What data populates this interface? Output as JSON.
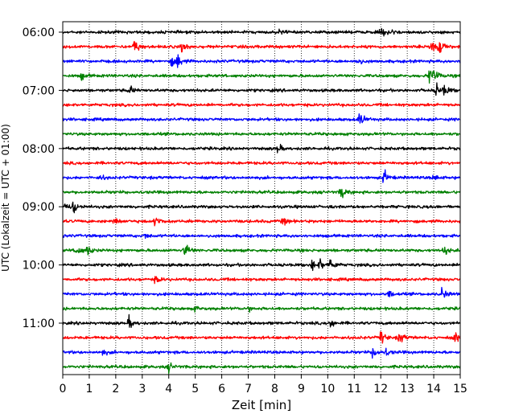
{
  "chart_data": {
    "type": "line",
    "subtype": "helicorder",
    "xlabel": "Zeit  [min]",
    "ylabel": "UTC (Lokalzeit = UTC + 01:00)",
    "xlim": [
      0,
      15
    ],
    "x_ticks": [
      "0",
      "1",
      "2",
      "3",
      "4",
      "5",
      "6",
      "7",
      "8",
      "9",
      "10",
      "11",
      "12",
      "13",
      "14",
      "15"
    ],
    "y_ticks": [
      "06:00",
      "07:00",
      "08:00",
      "09:00",
      "10:00",
      "11:00"
    ],
    "grid": "vertical dotted",
    "trace_interval_min": 15,
    "trace_colors": [
      "#000000",
      "#ff0000",
      "#0000ff",
      "#008000"
    ],
    "traces": [
      {
        "start": "06:00",
        "color": "#000000",
        "events": [
          [
            8.2,
            0.35
          ],
          [
            12.0,
            0.5
          ],
          [
            12.3,
            0.6
          ]
        ]
      },
      {
        "start": "06:15",
        "color": "#ff0000",
        "events": [
          [
            2.7,
            1.0
          ],
          [
            4.5,
            0.8
          ],
          [
            13.9,
            1.0
          ],
          [
            14.2,
            0.9
          ]
        ]
      },
      {
        "start": "06:30",
        "color": "#0000ff",
        "events": [
          [
            4.3,
            1.0
          ],
          [
            4.1,
            0.5
          ],
          [
            11.1,
            0.5
          ]
        ]
      },
      {
        "start": "06:45",
        "color": "#008000",
        "events": [
          [
            0.7,
            0.4
          ],
          [
            13.8,
            1.0
          ],
          [
            14.0,
            0.7
          ]
        ]
      },
      {
        "start": "07:00",
        "color": "#000000",
        "events": [
          [
            2.5,
            0.6
          ],
          [
            14.1,
            0.8
          ],
          [
            14.4,
            0.6
          ]
        ]
      },
      {
        "start": "07:15",
        "color": "#ff0000",
        "events": []
      },
      {
        "start": "07:30",
        "color": "#0000ff",
        "events": [
          [
            11.2,
            0.9
          ]
        ]
      },
      {
        "start": "07:45",
        "color": "#008000",
        "events": []
      },
      {
        "start": "08:00",
        "color": "#000000",
        "events": [
          [
            8.1,
            0.5
          ]
        ]
      },
      {
        "start": "08:15",
        "color": "#ff0000",
        "events": []
      },
      {
        "start": "08:30",
        "color": "#0000ff",
        "events": [
          [
            12.1,
            0.9
          ],
          [
            1.4,
            0.3
          ],
          [
            14.0,
            0.4
          ]
        ]
      },
      {
        "start": "08:45",
        "color": "#008000",
        "events": [
          [
            10.5,
            0.9
          ]
        ]
      },
      {
        "start": "09:00",
        "color": "#000000",
        "events": [
          [
            0.4,
            0.8
          ],
          [
            0.1,
            0.5
          ]
        ]
      },
      {
        "start": "09:15",
        "color": "#ff0000",
        "events": [
          [
            1.9,
            0.6
          ],
          [
            3.5,
            0.8
          ],
          [
            8.3,
            0.5
          ]
        ]
      },
      {
        "start": "09:30",
        "color": "#0000ff",
        "events": [
          [
            3.1,
            0.3
          ]
        ]
      },
      {
        "start": "09:45",
        "color": "#008000",
        "events": [
          [
            0.5,
            0.7
          ],
          [
            0.9,
            0.7
          ],
          [
            4.6,
            1.0
          ],
          [
            14.4,
            0.6
          ]
        ]
      },
      {
        "start": "10:00",
        "color": "#000000",
        "events": [
          [
            9.4,
            0.6
          ],
          [
            9.7,
            0.7
          ],
          [
            10.1,
            0.9
          ]
        ]
      },
      {
        "start": "10:15",
        "color": "#ff0000",
        "events": [
          [
            3.5,
            0.5
          ]
        ]
      },
      {
        "start": "10:30",
        "color": "#0000ff",
        "events": [
          [
            14.3,
            0.9
          ],
          [
            12.3,
            0.4
          ]
        ]
      },
      {
        "start": "10:45",
        "color": "#008000",
        "events": [
          [
            5.0,
            0.3
          ],
          [
            7.0,
            0.3
          ]
        ]
      },
      {
        "start": "11:00",
        "color": "#000000",
        "events": [
          [
            2.5,
            0.7
          ],
          [
            10.1,
            0.6
          ]
        ]
      },
      {
        "start": "11:15",
        "color": "#ff0000",
        "events": [
          [
            12.0,
            0.9
          ],
          [
            12.7,
            0.8
          ],
          [
            14.8,
            0.6
          ]
        ]
      },
      {
        "start": "11:30",
        "color": "#0000ff",
        "events": [
          [
            11.7,
            0.8
          ],
          [
            12.2,
            0.4
          ],
          [
            1.5,
            0.3
          ]
        ]
      },
      {
        "start": "11:45",
        "color": "#008000",
        "events": [
          [
            4.0,
            0.5
          ]
        ]
      }
    ]
  }
}
